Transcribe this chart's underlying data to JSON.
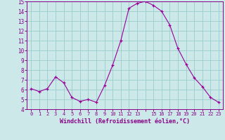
{
  "x_values": [
    0,
    1,
    2,
    3,
    4,
    5,
    6,
    7,
    8,
    9,
    10,
    11,
    12,
    13,
    14,
    15,
    16,
    17,
    18,
    19,
    20,
    21,
    22,
    23
  ],
  "y_values": [
    6.1,
    5.8,
    6.1,
    7.3,
    6.7,
    5.2,
    4.8,
    5.0,
    4.7,
    6.4,
    8.5,
    11.0,
    14.3,
    14.8,
    15.0,
    14.6,
    14.0,
    12.6,
    10.2,
    8.6,
    7.2,
    6.3,
    5.2,
    4.7
  ],
  "line_color": "#990099",
  "marker": "+",
  "bg_color": "#cce8e8",
  "grid_color": "#99cccc",
  "xlabel": "Windchill (Refroidissement éolien,°C)",
  "ylim": [
    4,
    15
  ],
  "xlim": [
    -0.5,
    23.5
  ],
  "yticks": [
    4,
    5,
    6,
    7,
    8,
    9,
    10,
    11,
    12,
    13,
    14,
    15
  ],
  "xticks": [
    0,
    1,
    2,
    3,
    4,
    5,
    6,
    7,
    8,
    9,
    10,
    11,
    12,
    13,
    15,
    16,
    17,
    18,
    19,
    20,
    21,
    22,
    23
  ],
  "tick_color": "#880088",
  "label_color": "#880088",
  "axis_color": "#880088",
  "tick_fontsize": 5.0,
  "label_fontsize": 6.0
}
